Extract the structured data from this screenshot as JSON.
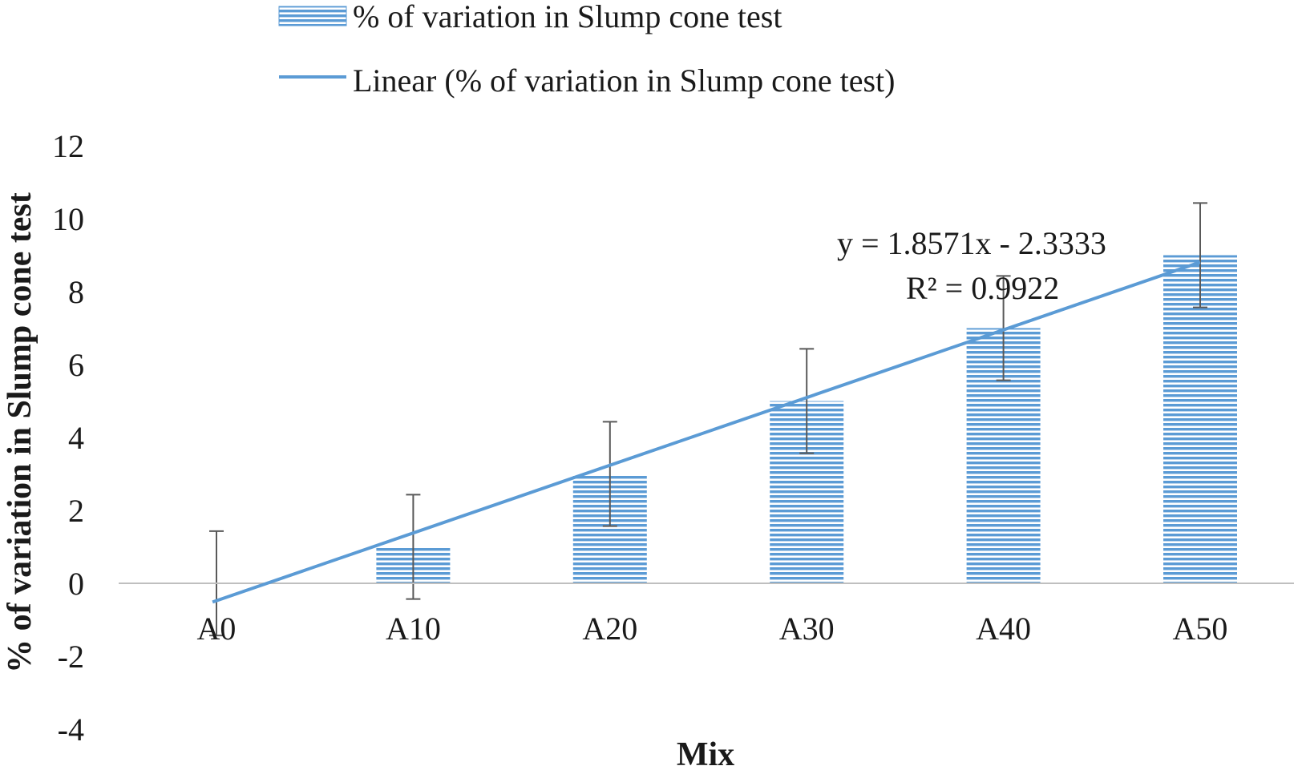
{
  "chart_data": {
    "type": "bar",
    "categories": [
      "A0",
      "A10",
      "A20",
      "A30",
      "A40",
      "A50"
    ],
    "series": [
      {
        "name": "% of variation in Slump cone test",
        "values": [
          0,
          1,
          3,
          5,
          7,
          9
        ],
        "error": 1.43,
        "color": "#5b9bd5"
      }
    ],
    "trendline": {
      "name": "Linear (% of variation in Slump cone test)",
      "slope": 1.8571,
      "intercept": -2.3333,
      "equation": "y = 1.8571x - 2.3333",
      "r_squared": "R² = 0.9922",
      "color": "#5b9bd5"
    },
    "xlabel": "Mix",
    "ylabel": "% of variation in Slump cone test",
    "ylim": [
      -4,
      12
    ],
    "yticks": [
      "12",
      "10",
      "8",
      "6",
      "4",
      "2",
      "0",
      "-2",
      "-4"
    ],
    "grid": false,
    "legend_position": "top"
  }
}
